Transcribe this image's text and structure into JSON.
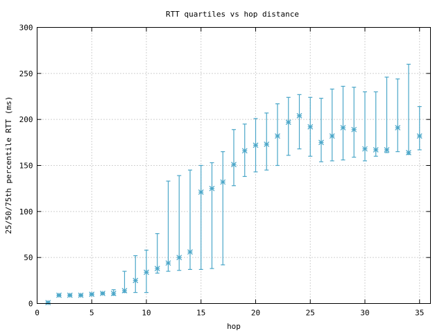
{
  "chart_data": {
    "type": "scatter",
    "title": "RTT quartiles vs hop distance",
    "xlabel": "hop",
    "ylabel": "25/50/75th percentile RTT (ms)",
    "xlim": [
      0,
      36
    ],
    "ylim": [
      0,
      300
    ],
    "xticks": [
      "0",
      "5",
      "10",
      "15",
      "20",
      "25",
      "30",
      "35"
    ],
    "yticks": [
      "0",
      "50",
      "100",
      "150",
      "200",
      "250",
      "300"
    ],
    "grid": true,
    "series_color": "#4aa6c8",
    "points": [
      {
        "hop": 1,
        "p25": 0,
        "median": 1,
        "p75": 2
      },
      {
        "hop": 2,
        "p25": 8,
        "median": 9,
        "p75": 10
      },
      {
        "hop": 3,
        "p25": 8,
        "median": 9,
        "p75": 10
      },
      {
        "hop": 4,
        "p25": 8,
        "median": 9,
        "p75": 10
      },
      {
        "hop": 5,
        "p25": 9,
        "median": 10,
        "p75": 11
      },
      {
        "hop": 6,
        "p25": 10,
        "median": 11,
        "p75": 12
      },
      {
        "hop": 7,
        "p25": 9,
        "median": 11,
        "p75": 15
      },
      {
        "hop": 8,
        "p25": 12,
        "median": 14,
        "p75": 35
      },
      {
        "hop": 9,
        "p25": 12,
        "median": 25,
        "p75": 52
      },
      {
        "hop": 10,
        "p25": 12,
        "median": 34,
        "p75": 58
      },
      {
        "hop": 11,
        "p25": 33,
        "median": 38,
        "p75": 76
      },
      {
        "hop": 12,
        "p25": 35,
        "median": 44,
        "p75": 133
      },
      {
        "hop": 13,
        "p25": 36,
        "median": 50,
        "p75": 139
      },
      {
        "hop": 14,
        "p25": 37,
        "median": 56,
        "p75": 145
      },
      {
        "hop": 15,
        "p25": 37,
        "median": 121,
        "p75": 150
      },
      {
        "hop": 16,
        "p25": 38,
        "median": 125,
        "p75": 153
      },
      {
        "hop": 17,
        "p25": 42,
        "median": 132,
        "p75": 165
      },
      {
        "hop": 18,
        "p25": 128,
        "median": 151,
        "p75": 189
      },
      {
        "hop": 19,
        "p25": 138,
        "median": 166,
        "p75": 195
      },
      {
        "hop": 20,
        "p25": 143,
        "median": 172,
        "p75": 201
      },
      {
        "hop": 21,
        "p25": 145,
        "median": 173,
        "p75": 207
      },
      {
        "hop": 22,
        "p25": 150,
        "median": 182,
        "p75": 217
      },
      {
        "hop": 23,
        "p25": 161,
        "median": 197,
        "p75": 224
      },
      {
        "hop": 24,
        "p25": 168,
        "median": 204,
        "p75": 227
      },
      {
        "hop": 25,
        "p25": 160,
        "median": 192,
        "p75": 224
      },
      {
        "hop": 26,
        "p25": 154,
        "median": 175,
        "p75": 223
      },
      {
        "hop": 27,
        "p25": 155,
        "median": 182,
        "p75": 233
      },
      {
        "hop": 28,
        "p25": 156,
        "median": 191,
        "p75": 236
      },
      {
        "hop": 29,
        "p25": 159,
        "median": 189,
        "p75": 235
      },
      {
        "hop": 30,
        "p25": 155,
        "median": 168,
        "p75": 230
      },
      {
        "hop": 31,
        "p25": 160,
        "median": 167,
        "p75": 230
      },
      {
        "hop": 32,
        "p25": 164,
        "median": 167,
        "p75": 246
      },
      {
        "hop": 33,
        "p25": 165,
        "median": 191,
        "p75": 244
      },
      {
        "hop": 34,
        "p25": 162,
        "median": 164,
        "p75": 260
      },
      {
        "hop": 35,
        "p25": 167,
        "median": 182,
        "p75": 214
      }
    ]
  }
}
